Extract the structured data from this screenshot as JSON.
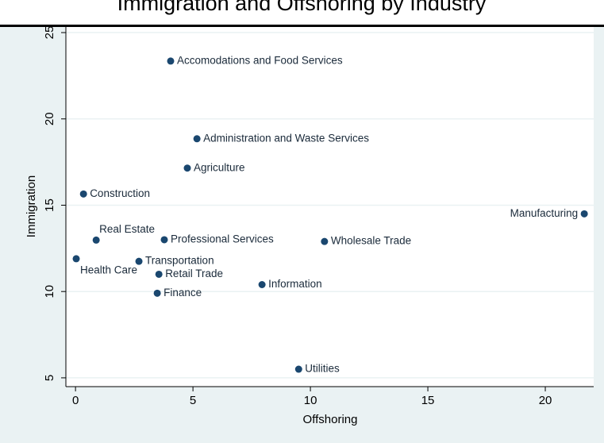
{
  "chart_data": {
    "type": "scatter",
    "title": "Immigration and Offshoring by Industry",
    "x_label": "Offshoring",
    "y_label": "Immigration",
    "color": "#1a476f",
    "names": [
      "Accomodations and Food Services",
      "Administration and Waste Services",
      "Agriculture",
      "Construction",
      "Manufacturing",
      "Real Estate",
      "Professional Services",
      "Wholesale Trade",
      "Health Care",
      "Transportation",
      "Retail Trade",
      "Finance",
      "Information",
      "Utilities"
    ],
    "x": [
      4.05,
      5.17,
      4.76,
      0.34,
      21.66,
      0.88,
      3.78,
      10.6,
      0.03,
      2.7,
      3.55,
      3.48,
      7.94,
      9.5
    ],
    "y": [
      23.35,
      18.85,
      17.15,
      15.65,
      14.5,
      12.98,
      13.0,
      12.9,
      11.9,
      11.75,
      11.0,
      9.9,
      10.4,
      5.5
    ],
    "xlim": [
      -0.41,
      22.06
    ],
    "ylim": [
      4.49,
      25.37
    ],
    "xticks": [
      0,
      5,
      10,
      15,
      20
    ],
    "yticks": [
      5,
      10,
      15,
      20,
      25
    ],
    "grid": true
  }
}
